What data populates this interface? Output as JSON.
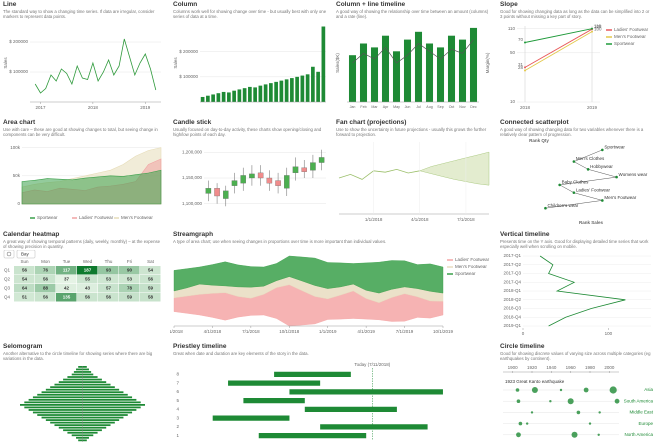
{
  "tiles": [
    {
      "type": "line",
      "title": "Line",
      "description": "The standard way to show a changing time series. If data are irregular, consider markers to represent data points.",
      "ylabel": "Sales",
      "color": "#2f9a3c",
      "x": [
        2016.9,
        2017.0,
        2017.1,
        2017.2,
        2017.3,
        2017.4,
        2017.5,
        2017.6,
        2017.7,
        2017.8,
        2017.9,
        2018.0,
        2018.1,
        2018.2,
        2018.3,
        2018.4,
        2018.5,
        2018.6,
        2018.7,
        2018.8,
        2018.9,
        2019.0,
        2019.1,
        2019.2
      ],
      "values": [
        60000,
        30000,
        45000,
        90000,
        70000,
        110000,
        95000,
        60000,
        120000,
        80000,
        75000,
        130000,
        70000,
        100000,
        140000,
        90000,
        120000,
        210000,
        150000,
        90000,
        130000,
        160000,
        110000,
        40000
      ],
      "xlim": [
        2016.8,
        2019.3
      ],
      "ylim": [
        0,
        260000
      ],
      "xticks": [
        2017,
        2018,
        2019
      ],
      "yticks": [
        {
          "value": 100000,
          "label": "$ 100000"
        },
        {
          "value": 200000,
          "label": "$ 200000"
        }
      ]
    },
    {
      "type": "column",
      "title": "Column",
      "description": "Columns work well for showing change over time - but usually best with only one series of data at a time.",
      "ylabel": "Sales",
      "color": "#1e8a35",
      "values": [
        20000,
        25000,
        30000,
        35000,
        40000,
        38000,
        45000,
        50000,
        55000,
        60000,
        58000,
        65000,
        70000,
        75000,
        80000,
        85000,
        90000,
        95000,
        100000,
        105000,
        110000,
        140000,
        120000,
        300000
      ],
      "ylim": [
        0,
        310000
      ],
      "yticks": [
        {
          "value": 100000,
          "label": "$ 100000"
        },
        {
          "value": 200000,
          "label": "$ 200000"
        }
      ]
    },
    {
      "type": "combo",
      "title": "Column + line timeline",
      "description": "A good way of showing the relationship over time between an amount (columns) and a rate (line).",
      "ylabel": "Sales($K)",
      "y2label": "Margin(%)",
      "color": "#1e8a35",
      "line_color": "#555555",
      "categories": [
        "Jan",
        "Feb",
        "Mar",
        "Apr",
        "May",
        "Jun",
        "Jul",
        "Aug",
        "Sep",
        "Oct",
        "Nov",
        "Dec"
      ],
      "values": [
        60,
        75,
        70,
        85,
        65,
        80,
        90,
        75,
        70,
        85,
        80,
        95
      ],
      "ylim": [
        0,
        100
      ],
      "line_values": [
        20,
        25,
        22,
        28,
        20,
        24,
        30,
        26,
        22,
        27,
        25,
        32
      ],
      "y2lim": [
        0,
        40
      ]
    },
    {
      "type": "slope",
      "title": "Slope",
      "description": "Good for showing changing data as long as the data can be simplified into 2 or 3 points without missing a key part of story.",
      "categories": [
        "2018",
        "2019"
      ],
      "log": true,
      "ylim": [
        10,
        120
      ],
      "yticks": [
        10,
        50,
        110
      ],
      "series": [
        {
          "name": "Ladies' Footwear",
          "color": "#e8595a",
          "values": [
            31,
            108
          ]
        },
        {
          "name": "Men's Footwear",
          "color": "#e3c84b",
          "values": [
            28,
            100
          ]
        },
        {
          "name": "Sportwear",
          "color": "#1f9a3a",
          "values": [
            70,
            110
          ]
        }
      ]
    },
    {
      "type": "area",
      "title": "Area chart",
      "description": "Use with care – these are good at showing changes to total, but seeing change in components can be very difficult.",
      "ylim": [
        0,
        110000
      ],
      "yticks": [
        0,
        {
          "value": 50000,
          "label": "50k"
        },
        {
          "value": 100000,
          "label": "100k"
        }
      ],
      "series": [
        {
          "name": "Sportwear",
          "color": "#3aa04a",
          "values": [
            40000,
            42000,
            45000,
            44000,
            43000,
            46000,
            48000,
            50000,
            49000,
            52000,
            55000,
            60000
          ]
        },
        {
          "name": "Ladies' Footwear",
          "color": "#f1a3a3",
          "values": [
            20000,
            25000,
            22000,
            28000,
            26000,
            24000,
            30000,
            32000,
            35000,
            40000,
            70000,
            80000
          ]
        },
        {
          "name": "Men's Footwear",
          "color": "#e6dcb8",
          "values": [
            30000,
            35000,
            38000,
            40000,
            45000,
            50000,
            55000,
            60000,
            70000,
            85000,
            95000,
            100000
          ]
        }
      ]
    },
    {
      "type": "candle",
      "title": "Candle stick",
      "description": "Usually focused on day-to-day activity, these charts show opening/closing and high/low points of each day.",
      "up_color": "#4caf50",
      "down_color": "#f08c8c",
      "ylim": [
        1080000,
        1220000
      ],
      "yticks": [
        {
          "value": 1100000,
          "label": "1,100,000"
        },
        {
          "value": 1150000,
          "label": "1,150,000"
        },
        {
          "value": 1200000,
          "label": "1,200,000"
        }
      ],
      "open": [
        1120000,
        1130000,
        1110000,
        1135000,
        1140000,
        1150000,
        1160000,
        1150000,
        1145000,
        1130000,
        1160000,
        1170000,
        1165000,
        1180000
      ],
      "close": [
        1130000,
        1115000,
        1125000,
        1145000,
        1155000,
        1158000,
        1150000,
        1140000,
        1135000,
        1155000,
        1172000,
        1162000,
        1180000,
        1190000
      ],
      "high": [
        1145000,
        1140000,
        1135000,
        1160000,
        1170000,
        1175000,
        1175000,
        1165000,
        1160000,
        1170000,
        1190000,
        1185000,
        1195000,
        1205000
      ],
      "low": [
        1105000,
        1100000,
        1095000,
        1120000,
        1125000,
        1135000,
        1135000,
        1125000,
        1120000,
        1115000,
        1145000,
        1150000,
        1150000,
        1165000
      ]
    },
    {
      "type": "fan",
      "title": "Fan chart (projections)",
      "description": "Use to show the uncertainty in future projections - usually this grows the further forward to projection.",
      "color": "#9bbf6a",
      "band_color": "#e3eccf",
      "ylim": [
        0,
        100
      ],
      "categories": [
        null,
        null,
        null,
        "1/1/2018",
        null,
        null,
        null,
        "4/1/2018",
        null,
        null,
        null,
        "7/1/2018",
        null,
        null
      ],
      "values": [
        50,
        55,
        48,
        60,
        58,
        62,
        57,
        60,
        null,
        null,
        null,
        null,
        null,
        null
      ],
      "projection_upper": [
        null,
        null,
        null,
        null,
        null,
        null,
        null,
        60,
        66,
        70,
        74,
        78,
        82,
        86
      ],
      "projection_lower": [
        null,
        null,
        null,
        null,
        null,
        null,
        null,
        60,
        56,
        52,
        48,
        45,
        42,
        40
      ]
    },
    {
      "type": "scatter",
      "title": "Connected scatterplot",
      "description": "A good way of showing changing data for two variables whenever there is a relatively clear pattern of progression.",
      "xlabel": "Rank Sales",
      "ylabel": "Rank Qty",
      "color": "#1e8a35",
      "xlim": [
        0,
        9
      ],
      "ylim": [
        0,
        9
      ],
      "points": [
        {
          "label": "Sportwear",
          "x": 6,
          "y": 8.5
        },
        {
          "label": "Men's Clothes",
          "x": 4,
          "y": 7
        },
        {
          "label": "Hobbywear",
          "x": 5,
          "y": 6
        },
        {
          "label": "Womens wear",
          "x": 7,
          "y": 5
        },
        {
          "label": "Baby Clothes",
          "x": 3,
          "y": 4
        },
        {
          "label": "Ladies' Footwear",
          "x": 4,
          "y": 3
        },
        {
          "label": "Men's Footwear",
          "x": 6,
          "y": 2
        },
        {
          "label": "Children's wear",
          "x": 2,
          "y": 1
        }
      ]
    },
    {
      "type": "calendar",
      "title": "Calendar heatmap",
      "description": "A great way of showing temporal patterns (daily, weekly, monthly) – at the expense of showing precision in quantity.",
      "button": "Bay",
      "columns": [
        "Sun",
        "Mon",
        "Tue",
        "Wed",
        "Thu",
        "Fri",
        "Sat"
      ],
      "rows": [
        "Q1",
        "Q2",
        "Q3",
        "Q4"
      ],
      "values": [
        [
          56,
          76,
          117,
          187,
          93,
          90,
          54
        ],
        [
          54,
          56,
          37,
          55,
          53,
          53,
          56
        ],
        [
          64,
          88,
          42,
          43,
          57,
          78,
          59
        ],
        [
          51,
          56,
          135,
          56,
          56,
          59,
          58
        ]
      ]
    },
    {
      "type": "stream",
      "title": "Streamgraph",
      "description": "A type of area chart; use when seeing changes in proportions over time is more important than individual values.",
      "categories": [
        "1/1/2018",
        null,
        null,
        "4/1/2018",
        null,
        null,
        "7/1/2018",
        null,
        null,
        "10/1/2018",
        null,
        null,
        "1/1/2019",
        null,
        null,
        "4/1/2019",
        null,
        null,
        "7/1/2019",
        null,
        null,
        "10/1/2019"
      ],
      "series": [
        {
          "name": "Ladies' Footwear",
          "color": "#f4a6a6",
          "values": [
            20,
            25,
            30,
            35,
            40,
            30,
            25,
            30,
            45,
            60,
            50,
            40,
            30,
            35,
            40,
            30,
            25,
            35,
            40,
            30,
            25,
            20
          ]
        },
        {
          "name": "Men's Footwear",
          "color": "#e8dcc0",
          "values": [
            10,
            12,
            15,
            12,
            10,
            14,
            16,
            12,
            10,
            12,
            14,
            16,
            15,
            12,
            10,
            12,
            14,
            12,
            10,
            12,
            14,
            12
          ]
        },
        {
          "name": "Sportwear",
          "color": "#3aa04a",
          "values": [
            30,
            28,
            25,
            30,
            35,
            32,
            30,
            28,
            25,
            30,
            35,
            40,
            38,
            35,
            30,
            40,
            45,
            42,
            38,
            35,
            40,
            38
          ]
        }
      ]
    },
    {
      "type": "vtimeline",
      "title": "Vertical timeline",
      "description": "Presents time on the Y axis. Good for displaying detailed time series that work especially well when scrolling on mobile.",
      "color": "#1e8a35",
      "categories": [
        "2017-Q1",
        "2017-Q2",
        "2017-Q3",
        "2017-Q4",
        "2018-Q1",
        "2018-Q2",
        "2018-Q3",
        "2018-Q4",
        "2019-Q1"
      ],
      "values": [
        20,
        35,
        30,
        60,
        40,
        120,
        80,
        50,
        30
      ],
      "xlim": [
        0,
        150
      ],
      "xticks": [
        0,
        100
      ]
    },
    {
      "type": "selomogram",
      "title": "Selomogram",
      "description": "Another alternative to the circle timeline for showing series where there are big variations in the data.",
      "color": "#1e8a35",
      "values": [
        4,
        6,
        8,
        10,
        14,
        18,
        22,
        26,
        30,
        34,
        38,
        42,
        46,
        50,
        54,
        58,
        54,
        50,
        46,
        42,
        38,
        34,
        30,
        26,
        22,
        18,
        14,
        10,
        6,
        4
      ]
    },
    {
      "type": "priestley",
      "title": "Priestley timeline",
      "description": "Great when date and duration are key elements of the story in the data.",
      "color": "#1e8a35",
      "annotation": "Today (7/11/2018)",
      "today": 62,
      "xlim": [
        0,
        100
      ],
      "rows": [
        {
          "label": "8",
          "start": 30,
          "end": 55
        },
        {
          "label": "7",
          "start": 15,
          "end": 45
        },
        {
          "label": "6",
          "start": 35,
          "end": 85
        },
        {
          "label": "5",
          "start": 20,
          "end": 40
        },
        {
          "label": "4",
          "start": 40,
          "end": 70
        },
        {
          "label": "3",
          "start": 10,
          "end": 35
        },
        {
          "label": "2",
          "start": 45,
          "end": 80
        },
        {
          "label": "1",
          "start": 25,
          "end": 60
        }
      ]
    },
    {
      "type": "circles",
      "title": "Circle timeline",
      "description": "Good for showing discrete values of varying size across multiple categories (eg earthquakes by continent).",
      "color": "#1e8a35",
      "annotation": "1923 Great Kanto earthquake",
      "xlim": [
        1890,
        2010
      ],
      "xticks": [
        1900,
        1920,
        1940,
        1960,
        1980,
        2000
      ],
      "rows": [
        {
          "label": "Asia",
          "years": [
            1905,
            1923,
            1950,
            1976,
            2004
          ],
          "sizes": [
            3,
            5,
            2,
            4,
            6
          ]
        },
        {
          "label": "South America",
          "years": [
            1906,
            1939,
            1960,
            2008
          ],
          "sizes": [
            3,
            2,
            5,
            4
          ]
        },
        {
          "label": "Middle East",
          "years": [
            1920,
            1968,
            1990
          ],
          "sizes": [
            2,
            3,
            2
          ]
        },
        {
          "label": "Europe",
          "years": [
            1908,
            1915,
            1980
          ],
          "sizes": [
            3,
            2,
            2
          ]
        },
        {
          "label": "North America",
          "years": [
            1906,
            1964,
            1989
          ],
          "sizes": [
            4,
            5,
            2
          ]
        }
      ]
    }
  ]
}
